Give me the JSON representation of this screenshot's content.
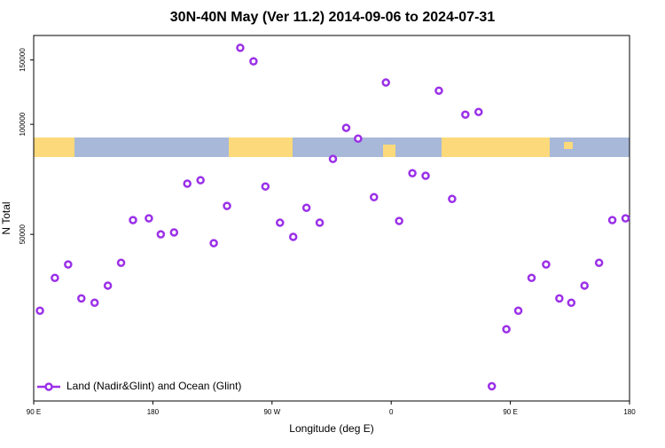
{
  "chart_data": {
    "type": "scatter",
    "title": "30N-40N May (Ver 11.2)   2014-09-06 to 2024-07-31",
    "xlabel": "Longitude (deg E)",
    "ylabel": "N Total",
    "x": [
      94.7,
      106,
      116,
      126,
      136,
      146,
      156,
      165,
      177,
      186,
      196,
      206,
      216,
      226,
      236,
      246,
      256,
      265,
      276,
      286,
      296,
      306,
      316,
      326,
      335,
      347,
      356,
      366,
      376,
      386,
      396,
      406,
      416,
      426,
      436,
      447,
      456,
      466,
      477,
      487,
      496,
      506,
      517,
      527,
      537
    ],
    "series": [
      {
        "name": "Land (Nadir&Glint) and Ocean (Glint)",
        "color": "#9b30e8",
        "values": [
          30900,
          38000,
          41350,
          33400,
          32500,
          36200,
          41800,
          54700,
          55300,
          50000,
          50600,
          68800,
          70300,
          47300,
          59800,
          161900,
          148700,
          67600,
          53800,
          49200,
          59100,
          53800,
          80400,
          97800,
          91400,
          63200,
          130100,
          54400,
          73500,
          72300,
          123600,
          62500,
          106300,
          108100,
          19200,
          27500,
          30900,
          38000,
          41350,
          33400,
          32500,
          36200,
          41800,
          54700,
          55300
        ]
      }
    ],
    "xlim": [
      90,
      540
    ],
    "xticks": [
      {
        "value": 90,
        "label": "90 E"
      },
      180,
      {
        "value": 270,
        "label": "90 W"
      },
      {
        "value": 360,
        "label": "0"
      },
      {
        "value": 450,
        "label": "90 E"
      },
      {
        "value": 540,
        "label": "180"
      }
    ],
    "ylim": [
      17500,
      175000
    ],
    "yticks": [
      50000,
      100000,
      150000
    ],
    "ylog": true,
    "legend": "lower left"
  }
}
